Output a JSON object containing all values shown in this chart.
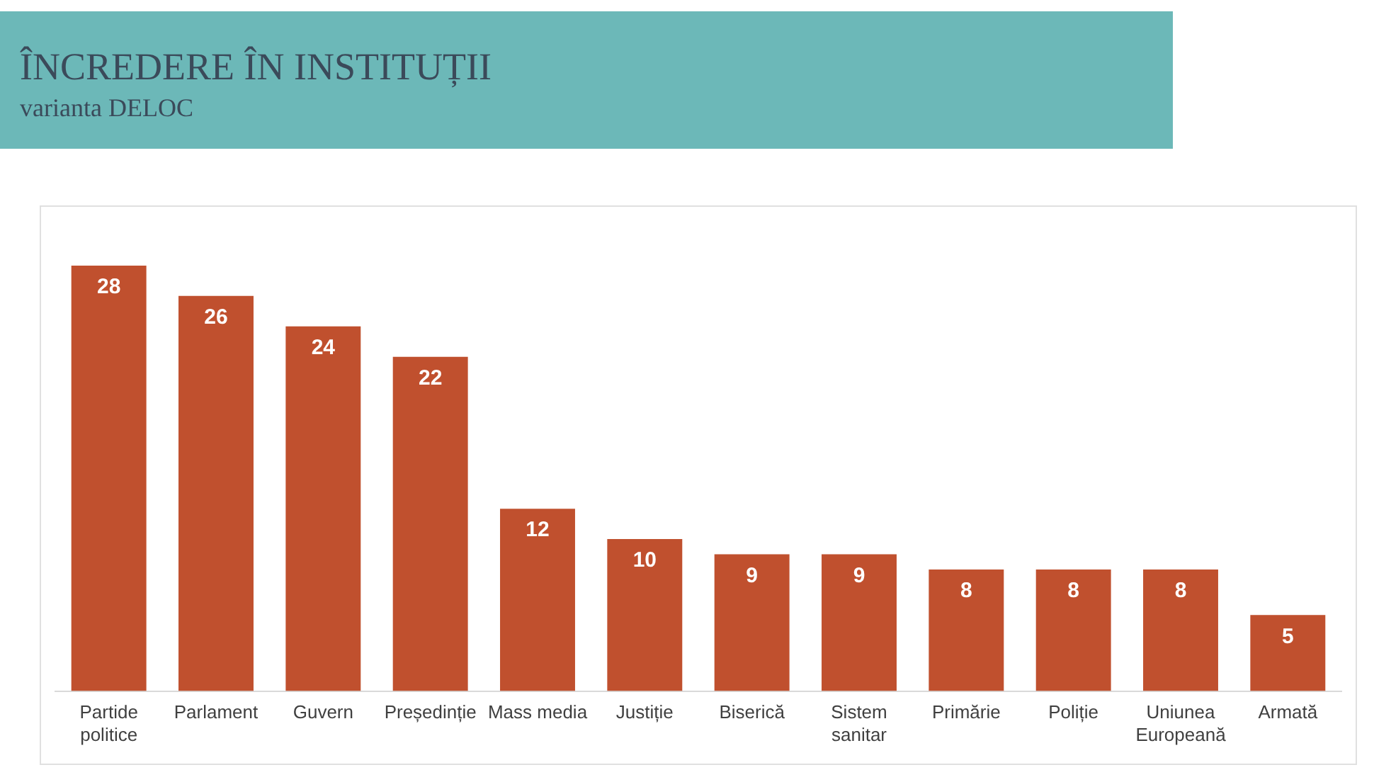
{
  "chart_data": {
    "type": "bar",
    "title": "ÎNCREDERE ÎN INSTITUȚII",
    "subtitle": "varianta DELOC",
    "categories": [
      "Partide politice",
      "Parlament",
      "Guvern",
      "Președinție",
      "Mass media",
      "Justiție",
      "Biserică",
      "Sistem sanitar",
      "Primărie",
      "Poliție",
      "Uniunea Europeană",
      "Armată"
    ],
    "values": [
      28,
      26,
      24,
      22,
      12,
      10,
      9,
      9,
      8,
      8,
      8,
      5
    ],
    "color": "#c0502e",
    "data_labels": true,
    "tick_labels": "x",
    "grid": false,
    "legend": false
  }
}
